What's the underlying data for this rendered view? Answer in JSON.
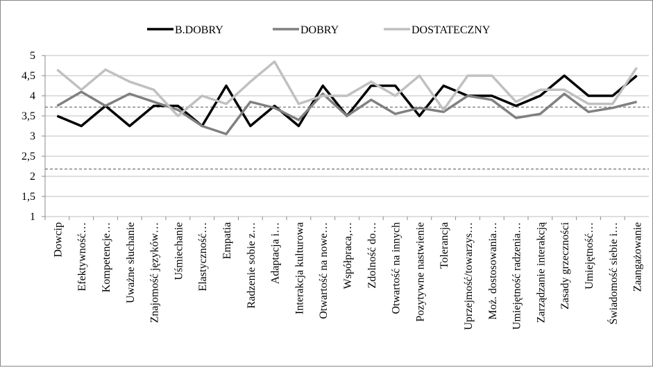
{
  "chart_data": {
    "type": "line",
    "categories": [
      "Dowcip",
      "Efektywność…",
      "Kompetencje…",
      "Uważne słuchanie",
      "Znajomość języków…",
      "Uśmiechanie",
      "Elastyczność…",
      "Empatia",
      "Radzenie sobie z…",
      "Adaptacja i…",
      "Interakcja kulturowa",
      "Otwartość na nowe…",
      "Współpraca,…",
      "Zdolność do…",
      "Otwartość na innych",
      "Pozytywne nastwienie",
      "Tolerancja",
      "Uprzejmość/towarzys…",
      "Moż. dostosowania…",
      "Umiejętność radzenia…",
      "Zarządzanie interakcją",
      "Zasady grzeczności",
      "Umiejętność…",
      "Świadomość siebie i…",
      "Zaangażowanie"
    ],
    "series": [
      {
        "name": "B.DOBRY",
        "color": "#000000",
        "values": [
          3.5,
          3.25,
          3.75,
          3.25,
          3.75,
          3.75,
          3.25,
          4.25,
          3.25,
          3.75,
          3.25,
          4.25,
          3.5,
          4.25,
          4.25,
          3.5,
          4.25,
          4.0,
          4.0,
          3.75,
          4.0,
          4.5,
          4.0,
          4.0,
          4.5
        ]
      },
      {
        "name": "DOBRY",
        "color": "#808080",
        "values": [
          3.75,
          4.1,
          3.75,
          4.05,
          3.85,
          3.65,
          3.25,
          3.05,
          3.85,
          3.7,
          3.4,
          4.05,
          3.5,
          3.9,
          3.55,
          3.7,
          3.6,
          4.0,
          3.9,
          3.45,
          3.55,
          4.05,
          3.6,
          3.7,
          3.85
        ]
      },
      {
        "name": "DOSTATECZNY",
        "color": "#c0c0c0",
        "values": [
          4.65,
          4.15,
          4.65,
          4.35,
          4.15,
          3.5,
          4.0,
          3.8,
          4.35,
          4.85,
          3.8,
          4.0,
          4.0,
          4.35,
          4.0,
          4.5,
          3.65,
          4.5,
          4.5,
          3.85,
          4.15,
          4.15,
          3.8,
          3.8,
          4.7
        ]
      }
    ],
    "reference_lines": [
      3.72,
      2.18
    ],
    "ylim": [
      1,
      5
    ],
    "yticks": [
      1,
      {
        "value": 1.5,
        "label": "1,5"
      },
      2,
      {
        "value": 2.5,
        "label": "2,5"
      },
      3,
      {
        "value": 3.5,
        "label": "3,5"
      },
      4,
      {
        "value": 4.5,
        "label": "4,5"
      },
      5
    ],
    "grid": true,
    "legend": "top"
  }
}
